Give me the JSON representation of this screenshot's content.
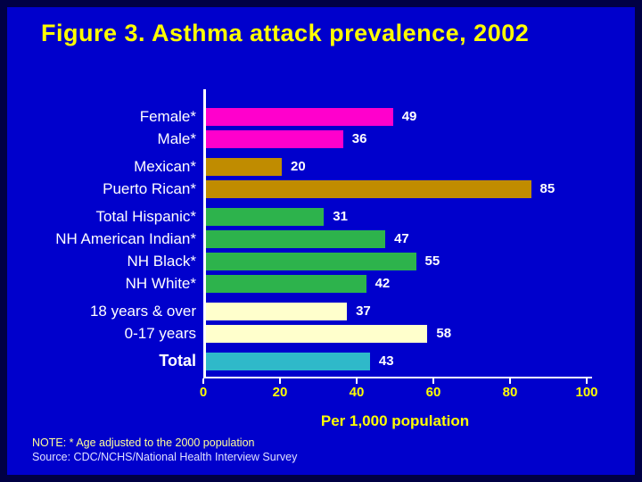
{
  "slide": {
    "background_color": "#0000CC",
    "frame_color": "#000044"
  },
  "title": "Figure 3. Asthma attack prevalence, 2002",
  "title_color": "#FFFF00",
  "chart_data": {
    "type": "bar",
    "orientation": "horizontal",
    "categories": [
      "Female*",
      "Male*",
      "Mexican*",
      "Puerto Rican*",
      "Total Hispanic*",
      "NH American Indian*",
      "NH Black*",
      "NH White*",
      "18 years & over",
      "0-17 years",
      "Total"
    ],
    "values": [
      49,
      36,
      20,
      85,
      31,
      47,
      55,
      42,
      37,
      58,
      43
    ],
    "groups": [
      0,
      0,
      1,
      1,
      2,
      2,
      2,
      2,
      3,
      3,
      4
    ],
    "bar_colors": [
      "#FF00CC",
      "#FF00CC",
      "#C08C00",
      "#C08C00",
      "#2DB34C",
      "#2DB34C",
      "#2DB34C",
      "#2DB34C",
      "#FFFFCC",
      "#FFFFCC",
      "#2FB9C9"
    ],
    "bold_categories": [
      "Total"
    ],
    "xlabel": "Per 1,000 population",
    "xlim": [
      0,
      100
    ],
    "xticks": [
      0,
      20,
      40,
      60,
      80,
      100
    ],
    "grid": false,
    "legend": false,
    "axis_color": "#FFFFFF",
    "tick_label_color": "#FFFF00",
    "value_label_color": "#FFFFFF",
    "category_label_color": "#FFFFFF"
  },
  "notes": {
    "note": "NOTE: * Age adjusted to the 2000 population",
    "source": "Source: CDC/NCHS/National Health Interview Survey"
  }
}
